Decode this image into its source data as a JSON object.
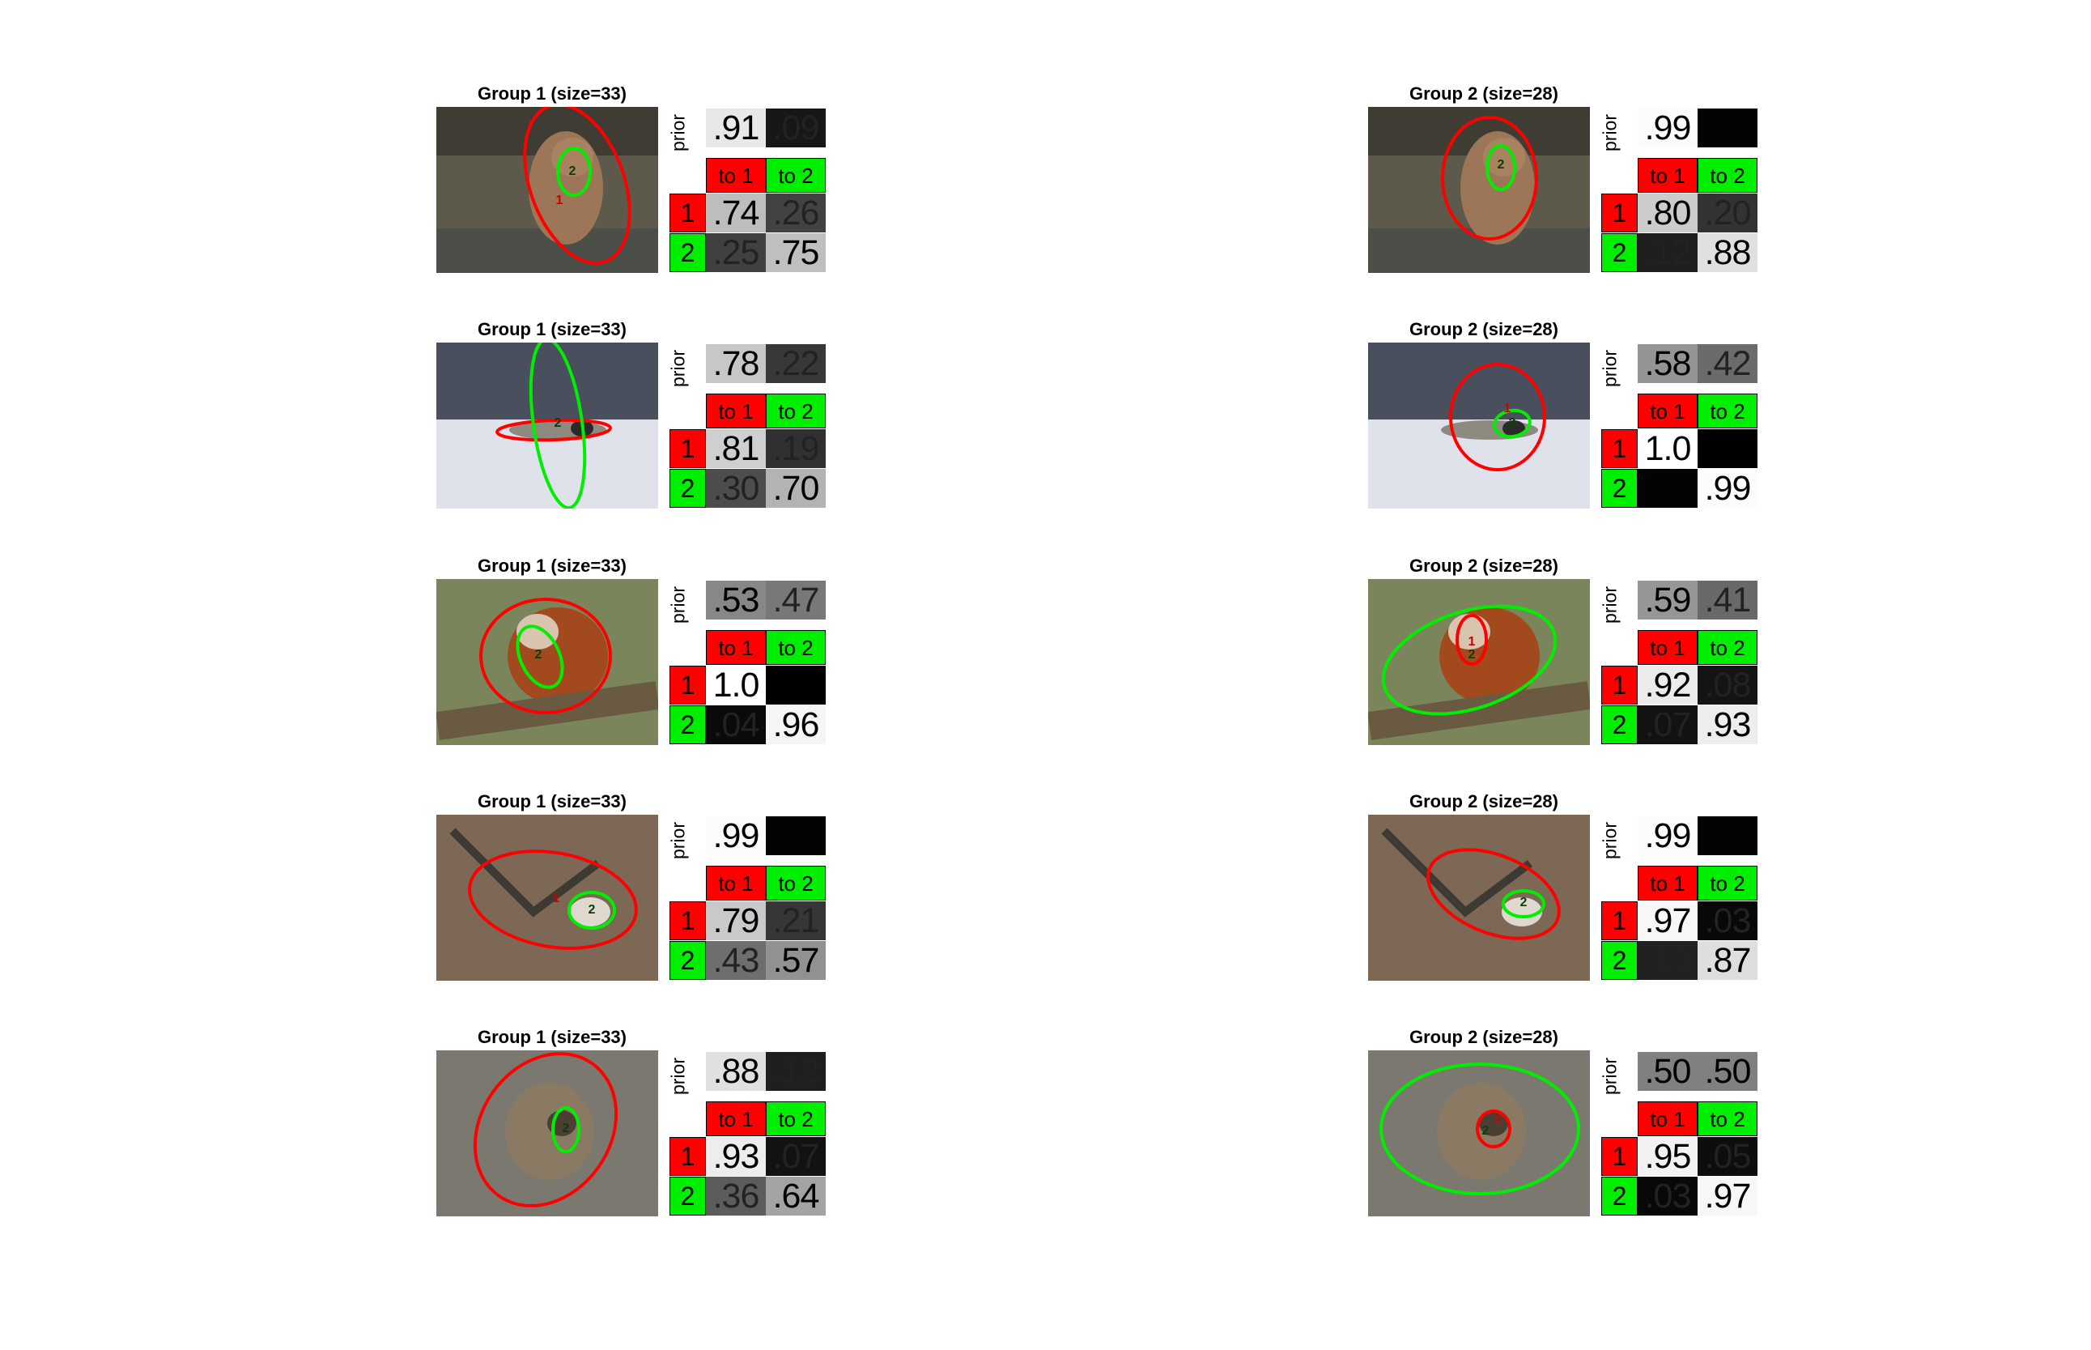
{
  "panels": [
    {
      "title": "Group 1 (size=33)",
      "scene": "bear",
      "prior_label": "prior",
      "prior": [
        "0.91",
        "0.09"
      ],
      "prior_text": [
        ".91",
        ".09"
      ],
      "col_headers": [
        "to 1",
        "to 2"
      ],
      "row_labels": [
        "1",
        "2"
      ],
      "matrix": [
        [
          "0.74",
          "0.26"
        ],
        [
          "0.25",
          "0.75"
        ]
      ],
      "matrix_text": [
        [
          ".74",
          ".26"
        ],
        [
          ".25",
          ".75"
        ]
      ],
      "ellipse_labels": [
        "2",
        "1"
      ]
    },
    {
      "title": "Group 2 (size=28)",
      "scene": "bear",
      "prior_label": "prior",
      "prior": [
        "0.99",
        "0.01"
      ],
      "prior_text": [
        ".99",
        ""
      ],
      "col_headers": [
        "to 1",
        "to 2"
      ],
      "row_labels": [
        "1",
        "2"
      ],
      "matrix": [
        [
          "0.80",
          "0.20"
        ],
        [
          "0.12",
          "0.88"
        ]
      ],
      "matrix_text": [
        [
          ".80",
          ".20"
        ],
        [
          ".12",
          ".88"
        ]
      ],
      "ellipse_labels": [
        "2",
        ""
      ]
    },
    {
      "title": "Group 1 (size=33)",
      "scene": "seal",
      "prior_label": "prior",
      "prior": [
        "0.78",
        "0.22"
      ],
      "prior_text": [
        ".78",
        ".22"
      ],
      "col_headers": [
        "to 1",
        "to 2"
      ],
      "row_labels": [
        "1",
        "2"
      ],
      "matrix": [
        [
          "0.81",
          "0.19"
        ],
        [
          "0.30",
          "0.70"
        ]
      ],
      "matrix_text": [
        [
          ".81",
          ".19"
        ],
        [
          ".30",
          ".70"
        ]
      ],
      "ellipse_labels": [
        "2",
        ""
      ]
    },
    {
      "title": "Group 2 (size=28)",
      "scene": "seal",
      "prior_label": "prior",
      "prior": [
        "0.58",
        "0.42"
      ],
      "prior_text": [
        ".58",
        ".42"
      ],
      "col_headers": [
        "to 1",
        "to 2"
      ],
      "row_labels": [
        "1",
        "2"
      ],
      "matrix": [
        [
          "1.0",
          "0.00"
        ],
        [
          "0.01",
          "0.99"
        ]
      ],
      "matrix_text": [
        [
          "1.0",
          ""
        ],
        [
          "",
          ".99"
        ]
      ],
      "ellipse_labels": [
        "2",
        "1"
      ]
    },
    {
      "title": "Group 1 (size=33)",
      "scene": "panda",
      "prior_label": "prior",
      "prior": [
        "0.53",
        "0.47"
      ],
      "prior_text": [
        ".53",
        ".47"
      ],
      "col_headers": [
        "to 1",
        "to 2"
      ],
      "row_labels": [
        "1",
        "2"
      ],
      "matrix": [
        [
          "1.0",
          "0.00"
        ],
        [
          "0.04",
          "0.96"
        ]
      ],
      "matrix_text": [
        [
          "1.0",
          ""
        ],
        [
          ".04",
          ".96"
        ]
      ],
      "ellipse_labels": [
        "2",
        ""
      ]
    },
    {
      "title": "Group 2 (size=28)",
      "scene": "panda",
      "prior_label": "prior",
      "prior": [
        "0.59",
        "0.41"
      ],
      "prior_text": [
        ".59",
        ".41"
      ],
      "col_headers": [
        "to 1",
        "to 2"
      ],
      "row_labels": [
        "1",
        "2"
      ],
      "matrix": [
        [
          "0.92",
          "0.08"
        ],
        [
          "0.07",
          "0.93"
        ]
      ],
      "matrix_text": [
        [
          ".92",
          ".08"
        ],
        [
          ".07",
          ".93"
        ]
      ],
      "ellipse_labels": [
        "2",
        "1"
      ]
    },
    {
      "title": "Group 1 (size=33)",
      "scene": "forest",
      "prior_label": "prior",
      "prior": [
        "0.99",
        "0.01"
      ],
      "prior_text": [
        ".99",
        ""
      ],
      "col_headers": [
        "to 1",
        "to 2"
      ],
      "row_labels": [
        "1",
        "2"
      ],
      "matrix": [
        [
          "0.79",
          "0.21"
        ],
        [
          "0.43",
          "0.57"
        ]
      ],
      "matrix_text": [
        [
          ".79",
          ".21"
        ],
        [
          ".43",
          ".57"
        ]
      ],
      "ellipse_labels": [
        "2",
        "1"
      ]
    },
    {
      "title": "Group 2 (size=28)",
      "scene": "forest",
      "prior_label": "prior",
      "prior": [
        "0.99",
        "0.01"
      ],
      "prior_text": [
        ".99",
        ""
      ],
      "col_headers": [
        "to 1",
        "to 2"
      ],
      "row_labels": [
        "1",
        "2"
      ],
      "matrix": [
        [
          "0.97",
          "0.03"
        ],
        [
          "0.13",
          "0.87"
        ]
      ],
      "matrix_text": [
        [
          ".97",
          ".03"
        ],
        [
          ".13",
          ".87"
        ]
      ],
      "ellipse_labels": [
        "2",
        ""
      ]
    },
    {
      "title": "Group 1 (size=33)",
      "scene": "raccoon",
      "prior_label": "prior",
      "prior": [
        "0.88",
        "0.12"
      ],
      "prior_text": [
        ".88",
        ".12"
      ],
      "col_headers": [
        "to 1",
        "to 2"
      ],
      "row_labels": [
        "1",
        "2"
      ],
      "matrix": [
        [
          "0.93",
          "0.07"
        ],
        [
          "0.36",
          "0.64"
        ]
      ],
      "matrix_text": [
        [
          ".93",
          ".07"
        ],
        [
          ".36",
          ".64"
        ]
      ],
      "ellipse_labels": [
        "2",
        ""
      ]
    },
    {
      "title": "Group 2 (size=28)",
      "scene": "raccoon",
      "prior_label": "prior",
      "prior": [
        "0.50",
        "0.50"
      ],
      "prior_text": [
        ".50",
        ".50"
      ],
      "col_headers": [
        "to 1",
        "to 2"
      ],
      "row_labels": [
        "1",
        "2"
      ],
      "matrix": [
        [
          "0.95",
          "0.05"
        ],
        [
          "0.03",
          "0.97"
        ]
      ],
      "matrix_text": [
        [
          ".95",
          ".05"
        ],
        [
          ".03",
          ".97"
        ]
      ],
      "ellipse_labels": [
        "2",
        "1"
      ]
    }
  ],
  "colors": {
    "state1": "#ff0000",
    "state2": "#00ee00"
  }
}
